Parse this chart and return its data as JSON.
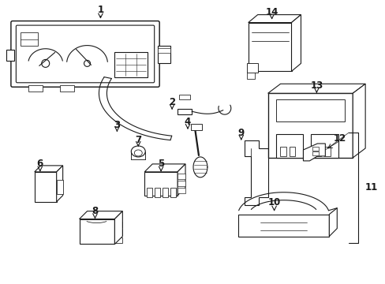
{
  "bg_color": "#ffffff",
  "line_color": "#1a1a1a",
  "lw": 0.8,
  "fig_width": 4.89,
  "fig_height": 3.6,
  "dpi": 100
}
